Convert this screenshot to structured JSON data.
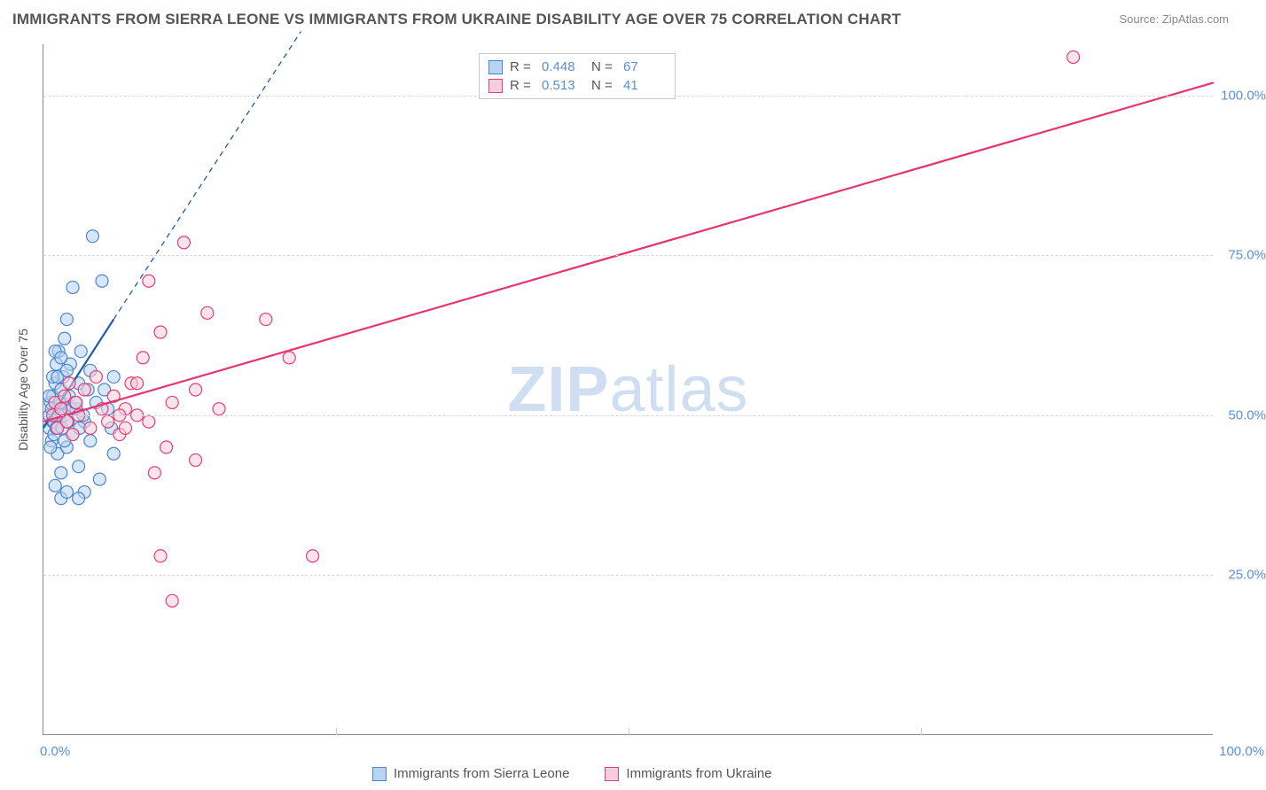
{
  "title": "IMMIGRANTS FROM SIERRA LEONE VS IMMIGRANTS FROM UKRAINE DISABILITY AGE OVER 75 CORRELATION CHART",
  "source": "Source: ZipAtlas.com",
  "y_axis_label": "Disability Age Over 75",
  "watermark": {
    "bold": "ZIP",
    "rest": "atlas"
  },
  "chart": {
    "type": "scatter",
    "xlim": [
      0,
      100
    ],
    "ylim": [
      0,
      108
    ],
    "y_ticks": [
      25,
      50,
      75,
      100
    ],
    "y_tick_labels": [
      "25.0%",
      "50.0%",
      "75.0%",
      "100.0%"
    ],
    "x_ticks": [
      0,
      25,
      50,
      75,
      100
    ],
    "x_tick_labels": [
      "0.0%",
      "",
      "",
      "",
      "100.0%"
    ],
    "grid_color": "#d8d8d8",
    "axis_color": "#888888",
    "background": "#ffffff",
    "marker_radius": 7,
    "marker_stroke_width": 1.2,
    "series": [
      {
        "name": "Immigrants from Sierra Leone",
        "fill": "#b8d4f0",
        "stroke": "#4a86d1",
        "line_color": "#1e5ca8",
        "line_width": 2.2,
        "dash_extension": true,
        "R": "0.448",
        "N": "67",
        "trend": {
          "x1": 0,
          "y1": 48,
          "x2": 6,
          "y2": 65,
          "x2_dash": 22,
          "y2_dash": 110
        },
        "points": [
          [
            0.5,
            50
          ],
          [
            0.5,
            48
          ],
          [
            0.6,
            52
          ],
          [
            0.7,
            46
          ],
          [
            0.8,
            49
          ],
          [
            0.8,
            53
          ],
          [
            0.9,
            47
          ],
          [
            1.0,
            55
          ],
          [
            1.0,
            50
          ],
          [
            1.1,
            58
          ],
          [
            1.2,
            44
          ],
          [
            1.2,
            51
          ],
          [
            1.3,
            60
          ],
          [
            1.4,
            49
          ],
          [
            1.5,
            54
          ],
          [
            1.5,
            41
          ],
          [
            1.6,
            52
          ],
          [
            1.7,
            56
          ],
          [
            1.8,
            62
          ],
          [
            1.8,
            50
          ],
          [
            2.0,
            45
          ],
          [
            2.0,
            65
          ],
          [
            2.2,
            53
          ],
          [
            2.3,
            58
          ],
          [
            2.5,
            47
          ],
          [
            2.5,
            70
          ],
          [
            2.8,
            51
          ],
          [
            3.0,
            55
          ],
          [
            3.0,
            42
          ],
          [
            3.2,
            60
          ],
          [
            3.5,
            49
          ],
          [
            3.5,
            38
          ],
          [
            3.8,
            54
          ],
          [
            4.0,
            57
          ],
          [
            4.0,
            46
          ],
          [
            4.2,
            78
          ],
          [
            4.5,
            52
          ],
          [
            4.8,
            40
          ],
          [
            5.0,
            71
          ],
          [
            5.2,
            54
          ],
          [
            5.5,
            51
          ],
          [
            5.8,
            48
          ],
          [
            6.0,
            56
          ],
          [
            6.0,
            44
          ],
          [
            1.0,
            39
          ],
          [
            1.5,
            37
          ],
          [
            2.0,
            38
          ],
          [
            3.0,
            37
          ],
          [
            0.8,
            56
          ],
          [
            1.0,
            60
          ],
          [
            1.2,
            56
          ],
          [
            1.5,
            59
          ],
          [
            2.0,
            57
          ],
          [
            0.5,
            53
          ],
          [
            0.6,
            45
          ],
          [
            0.7,
            51
          ],
          [
            0.9,
            49
          ],
          [
            1.1,
            48
          ],
          [
            1.3,
            50
          ],
          [
            1.4,
            52
          ],
          [
            1.6,
            48
          ],
          [
            1.8,
            46
          ],
          [
            2.1,
            49
          ],
          [
            2.4,
            51
          ],
          [
            2.7,
            52
          ],
          [
            3.1,
            48
          ],
          [
            3.4,
            50
          ]
        ]
      },
      {
        "name": "Immigrants from Ukraine",
        "fill": "#f7cdd9",
        "stroke": "#e63d78",
        "line_color": "#e8336e",
        "line_width": 2.2,
        "dash_extension": false,
        "R": "0.513",
        "N": "41",
        "trend": {
          "x1": 0,
          "y1": 49,
          "x2": 100,
          "y2": 102
        },
        "points": [
          [
            0.8,
            50
          ],
          [
            1.0,
            52
          ],
          [
            1.2,
            48
          ],
          [
            1.5,
            51
          ],
          [
            1.8,
            53
          ],
          [
            2.0,
            49
          ],
          [
            2.2,
            55
          ],
          [
            2.5,
            47
          ],
          [
            2.8,
            52
          ],
          [
            3.0,
            50
          ],
          [
            3.5,
            54
          ],
          [
            4.0,
            48
          ],
          [
            4.5,
            56
          ],
          [
            5.0,
            51
          ],
          [
            5.5,
            49
          ],
          [
            6.0,
            53
          ],
          [
            6.5,
            47
          ],
          [
            7.0,
            51
          ],
          [
            7.5,
            55
          ],
          [
            8.0,
            50
          ],
          [
            8.5,
            59
          ],
          [
            9.0,
            71
          ],
          [
            10.0,
            63
          ],
          [
            10.5,
            45
          ],
          [
            11.0,
            52
          ],
          [
            12.0,
            77
          ],
          [
            13.0,
            54
          ],
          [
            14.0,
            66
          ],
          [
            15.0,
            51
          ],
          [
            9.5,
            41
          ],
          [
            10.0,
            28
          ],
          [
            11.0,
            21
          ],
          [
            13.0,
            43
          ],
          [
            19.0,
            65
          ],
          [
            21.0,
            59
          ],
          [
            23.0,
            28
          ],
          [
            8.0,
            55
          ],
          [
            9.0,
            49
          ],
          [
            7.0,
            48
          ],
          [
            6.5,
            50
          ],
          [
            88.0,
            106
          ]
        ]
      }
    ]
  },
  "legend_top": [
    {
      "series_index": 0,
      "R_label": "R =",
      "N_label": "N ="
    },
    {
      "series_index": 1,
      "R_label": "R =",
      "N_label": "N ="
    }
  ],
  "legend_bottom": [
    {
      "series_index": 0
    },
    {
      "series_index": 1
    }
  ]
}
